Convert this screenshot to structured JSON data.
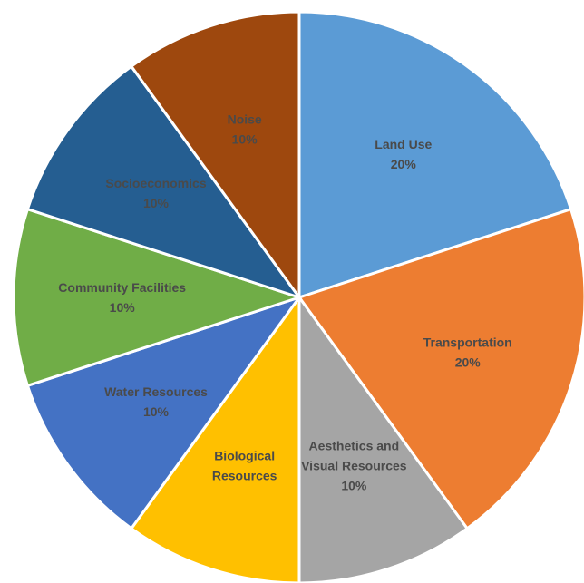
{
  "chart_data": {
    "type": "pie",
    "title": "",
    "start_angle_deg": 0,
    "direction": "clockwise",
    "slices": [
      {
        "label": [
          "Land Use",
          "20%"
        ],
        "value": 20,
        "color": "#5b9bd5"
      },
      {
        "label": [
          "Transportation",
          "20%"
        ],
        "value": 20,
        "color": "#ed7d31"
      },
      {
        "label": [
          "Aesthetics and",
          "Visual Resources",
          "10%"
        ],
        "value": 10,
        "color": "#a5a5a5"
      },
      {
        "label": [
          "Biological",
          "Resources"
        ],
        "value": 10,
        "color": "#ffc000"
      },
      {
        "label": [
          "Water Resources",
          "10%"
        ],
        "value": 10,
        "color": "#4472c4"
      },
      {
        "label": [
          "Community Facilities",
          "10%"
        ],
        "value": 10,
        "color": "#70ad47"
      },
      {
        "label": [
          "Socioeconomics",
          "10%"
        ],
        "value": 10,
        "color": "#255e91"
      },
      {
        "label": [
          "Noise",
          "10%"
        ],
        "value": 10,
        "color": "#9e480e"
      }
    ]
  }
}
